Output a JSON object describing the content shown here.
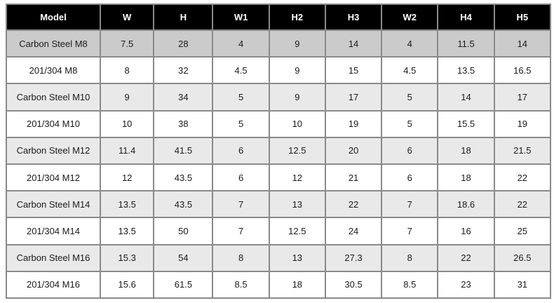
{
  "table": {
    "columns": [
      "Model",
      "W",
      "H",
      "W1",
      "H2",
      "H3",
      "W2",
      "H4",
      "H5"
    ],
    "rows": [
      {
        "model": "Carbon Steel M8",
        "values": [
          "7.5",
          "28",
          "4",
          "9",
          "14",
          "4",
          "11.5",
          "14"
        ]
      },
      {
        "model": "201/304 M8",
        "values": [
          "8",
          "32",
          "4.5",
          "9",
          "15",
          "4.5",
          "13.5",
          "16.5"
        ]
      },
      {
        "model": "Carbon Steel M10",
        "values": [
          "9",
          "34",
          "5",
          "9",
          "17",
          "5",
          "14",
          "17"
        ]
      },
      {
        "model": "201/304 M10",
        "values": [
          "10",
          "38",
          "5",
          "10",
          "19",
          "5",
          "15.5",
          "19"
        ]
      },
      {
        "model": "Carbon Steel M12",
        "values": [
          "11.4",
          "41.5",
          "6",
          "12.5",
          "20",
          "6",
          "18",
          "21.5"
        ]
      },
      {
        "model": "201/304 M12",
        "values": [
          "12",
          "43.5",
          "6",
          "12",
          "21",
          "6",
          "18",
          "22"
        ]
      },
      {
        "model": "Carbon Steel M14",
        "values": [
          "13.5",
          "43.5",
          "7",
          "13",
          "22",
          "7",
          "18.6",
          "22"
        ]
      },
      {
        "model": "201/304 M14",
        "values": [
          "13.5",
          "50",
          "7",
          "12.5",
          "24",
          "7",
          "16",
          "25"
        ]
      },
      {
        "model": "Carbon Steel M16",
        "values": [
          "15.3",
          "54",
          "8",
          "13",
          "27.3",
          "8",
          "22",
          "26.5"
        ]
      },
      {
        "model": "201/304 M16",
        "values": [
          "15.6",
          "61.5",
          "8.5",
          "18",
          "30.5",
          "8.5",
          "23",
          "31"
        ]
      }
    ]
  },
  "colors": {
    "header_bg": "#000000",
    "header_text": "#ffffff",
    "row_first_gray": "#cbcbcb",
    "row_alt_gray": "#e9e9e9",
    "row_white": "#ffffff",
    "border_inner": "#8a8a8a",
    "border_outer": "#4d4d4d"
  }
}
